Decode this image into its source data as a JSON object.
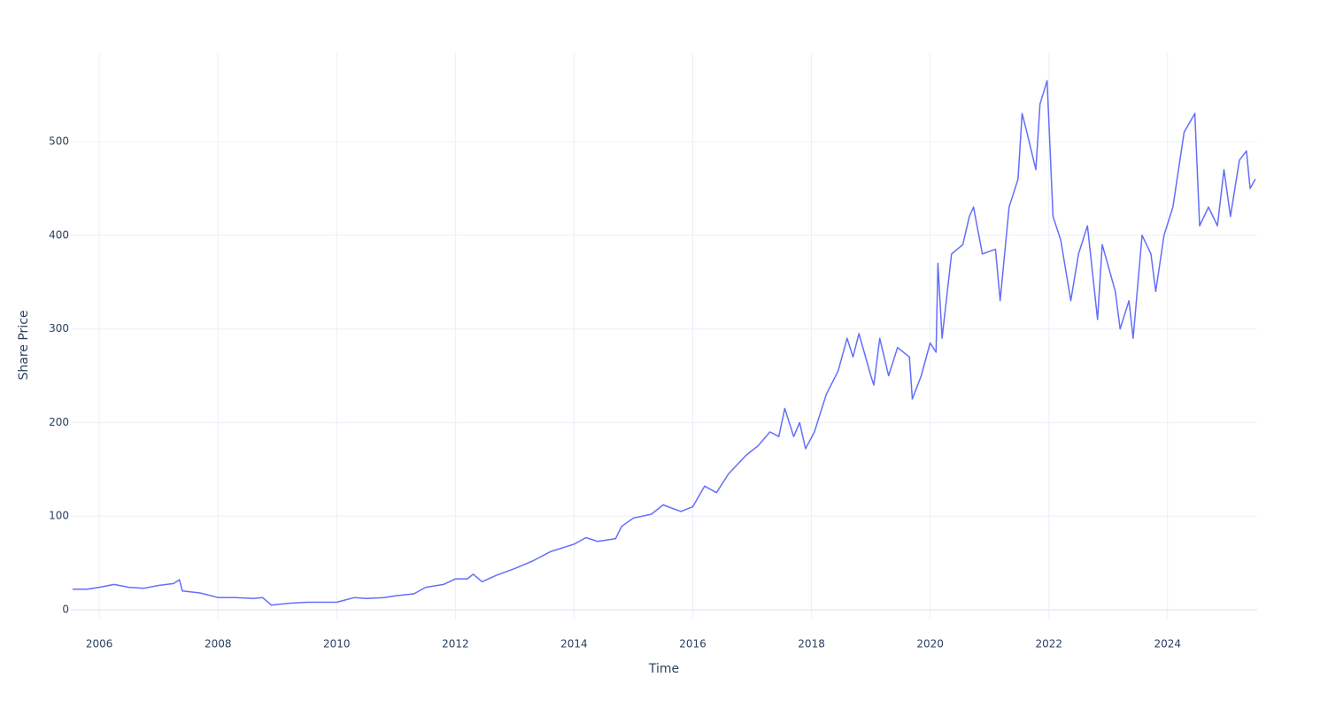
{
  "chart_data": {
    "type": "line",
    "x_label": "Time",
    "y_label": "Share Price",
    "x": [
      2005.55,
      2005.8,
      2006.0,
      2006.25,
      2006.5,
      2006.75,
      2007.0,
      2007.25,
      2007.35,
      2007.4,
      2007.7,
      2008.0,
      2008.3,
      2008.6,
      2008.75,
      2008.9,
      2009.2,
      2009.5,
      2009.8,
      2010.0,
      2010.3,
      2010.5,
      2010.8,
      2011.0,
      2011.3,
      2011.5,
      2011.8,
      2012.0,
      2012.2,
      2012.3,
      2012.45,
      2012.7,
      2013.0,
      2013.3,
      2013.6,
      2014.0,
      2014.2,
      2014.4,
      2014.7,
      2014.8,
      2015.0,
      2015.3,
      2015.5,
      2015.8,
      2016.0,
      2016.2,
      2016.4,
      2016.6,
      2016.9,
      2017.1,
      2017.3,
      2017.45,
      2017.55,
      2017.7,
      2017.8,
      2017.9,
      2018.05,
      2018.25,
      2018.45,
      2018.6,
      2018.7,
      2018.8,
      2019.0,
      2019.05,
      2019.15,
      2019.3,
      2019.45,
      2019.65,
      2019.7,
      2019.85,
      2020.0,
      2020.1,
      2020.13,
      2020.2,
      2020.36,
      2020.55,
      2020.66,
      2020.73,
      2020.88,
      2021.1,
      2021.18,
      2021.33,
      2021.48,
      2021.55,
      2021.63,
      2021.78,
      2021.85,
      2021.97,
      2022.07,
      2022.2,
      2022.37,
      2022.5,
      2022.65,
      2022.82,
      2022.9,
      2023.12,
      2023.2,
      2023.35,
      2023.42,
      2023.57,
      2023.72,
      2023.8,
      2023.94,
      2024.09,
      2024.28,
      2024.46,
      2024.54,
      2024.69,
      2024.84,
      2024.95,
      2025.06,
      2025.21,
      2025.33,
      2025.39,
      2025.48
    ],
    "series": [
      {
        "name": "Share Price",
        "color": "#636efa",
        "values": [
          22,
          22,
          24,
          27,
          24,
          23,
          26,
          28,
          32,
          20,
          18,
          13,
          13,
          12,
          13,
          5,
          7,
          8,
          8,
          8,
          13,
          12,
          13,
          15,
          17,
          24,
          27,
          33,
          33,
          38,
          30,
          37,
          44,
          52,
          62,
          70,
          77,
          73,
          76,
          89,
          98,
          102,
          112,
          105,
          110,
          132,
          125,
          145,
          165,
          175,
          190,
          185,
          215,
          185,
          200,
          172,
          190,
          230,
          255,
          290,
          270,
          295,
          250,
          240,
          290,
          250,
          280,
          270,
          225,
          250,
          285,
          275,
          370,
          290,
          380,
          390,
          420,
          430,
          380,
          385,
          330,
          430,
          460,
          530,
          510,
          470,
          540,
          565,
          420,
          395,
          330,
          380,
          410,
          310,
          390,
          340,
          300,
          330,
          290,
          400,
          380,
          340,
          400,
          430,
          510,
          530,
          410,
          430,
          410,
          470,
          420,
          480,
          490,
          450,
          460
        ]
      }
    ],
    "xlim": [
      2005.52,
      2025.51
    ],
    "xticks": [
      2006,
      2008,
      2010,
      2012,
      2014,
      2016,
      2018,
      2020,
      2022,
      2024
    ],
    "ylim": [
      -10.4,
      594.5
    ],
    "yticks": [
      0,
      100,
      200,
      300,
      400,
      500
    ],
    "grid": true
  }
}
